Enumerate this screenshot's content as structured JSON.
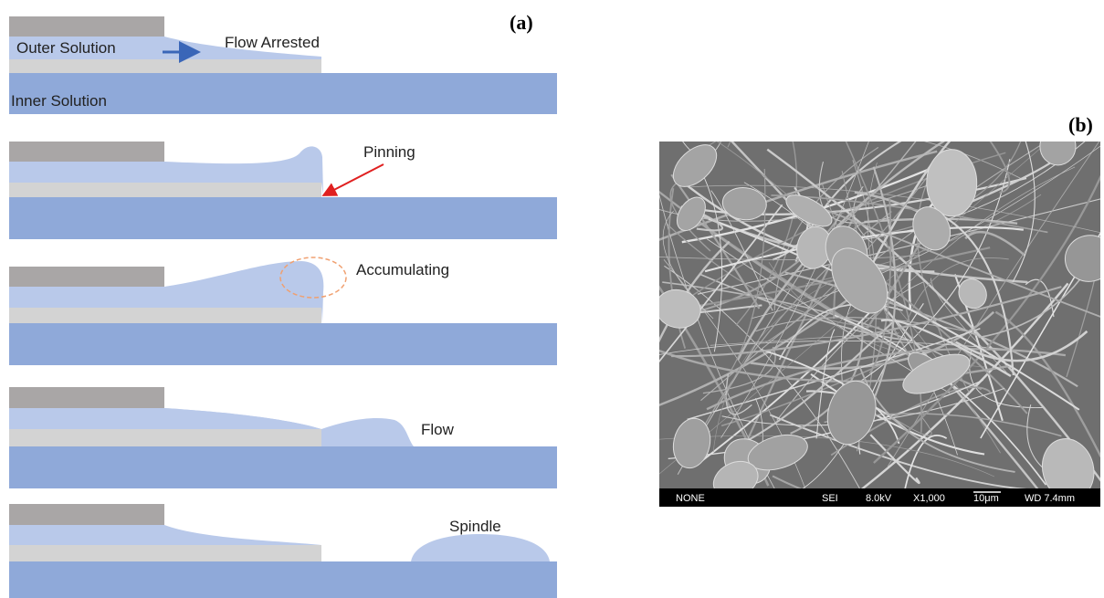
{
  "panels": {
    "a": {
      "label": "(a)",
      "steps": [
        {
          "labels": [
            "Outer Solution",
            "Flow Arrested",
            "Inner Solution"
          ]
        },
        {
          "labels": [
            "Pinning"
          ]
        },
        {
          "labels": [
            "Accumulating"
          ]
        },
        {
          "labels": [
            "Flow"
          ]
        },
        {
          "labels": [
            "Spindle"
          ]
        }
      ]
    },
    "b": {
      "label": "(b)",
      "info_bar": [
        "NONE",
        "SEI",
        "8.0kV",
        "X1,000",
        "10μm",
        "WD 7.4mm"
      ]
    }
  }
}
